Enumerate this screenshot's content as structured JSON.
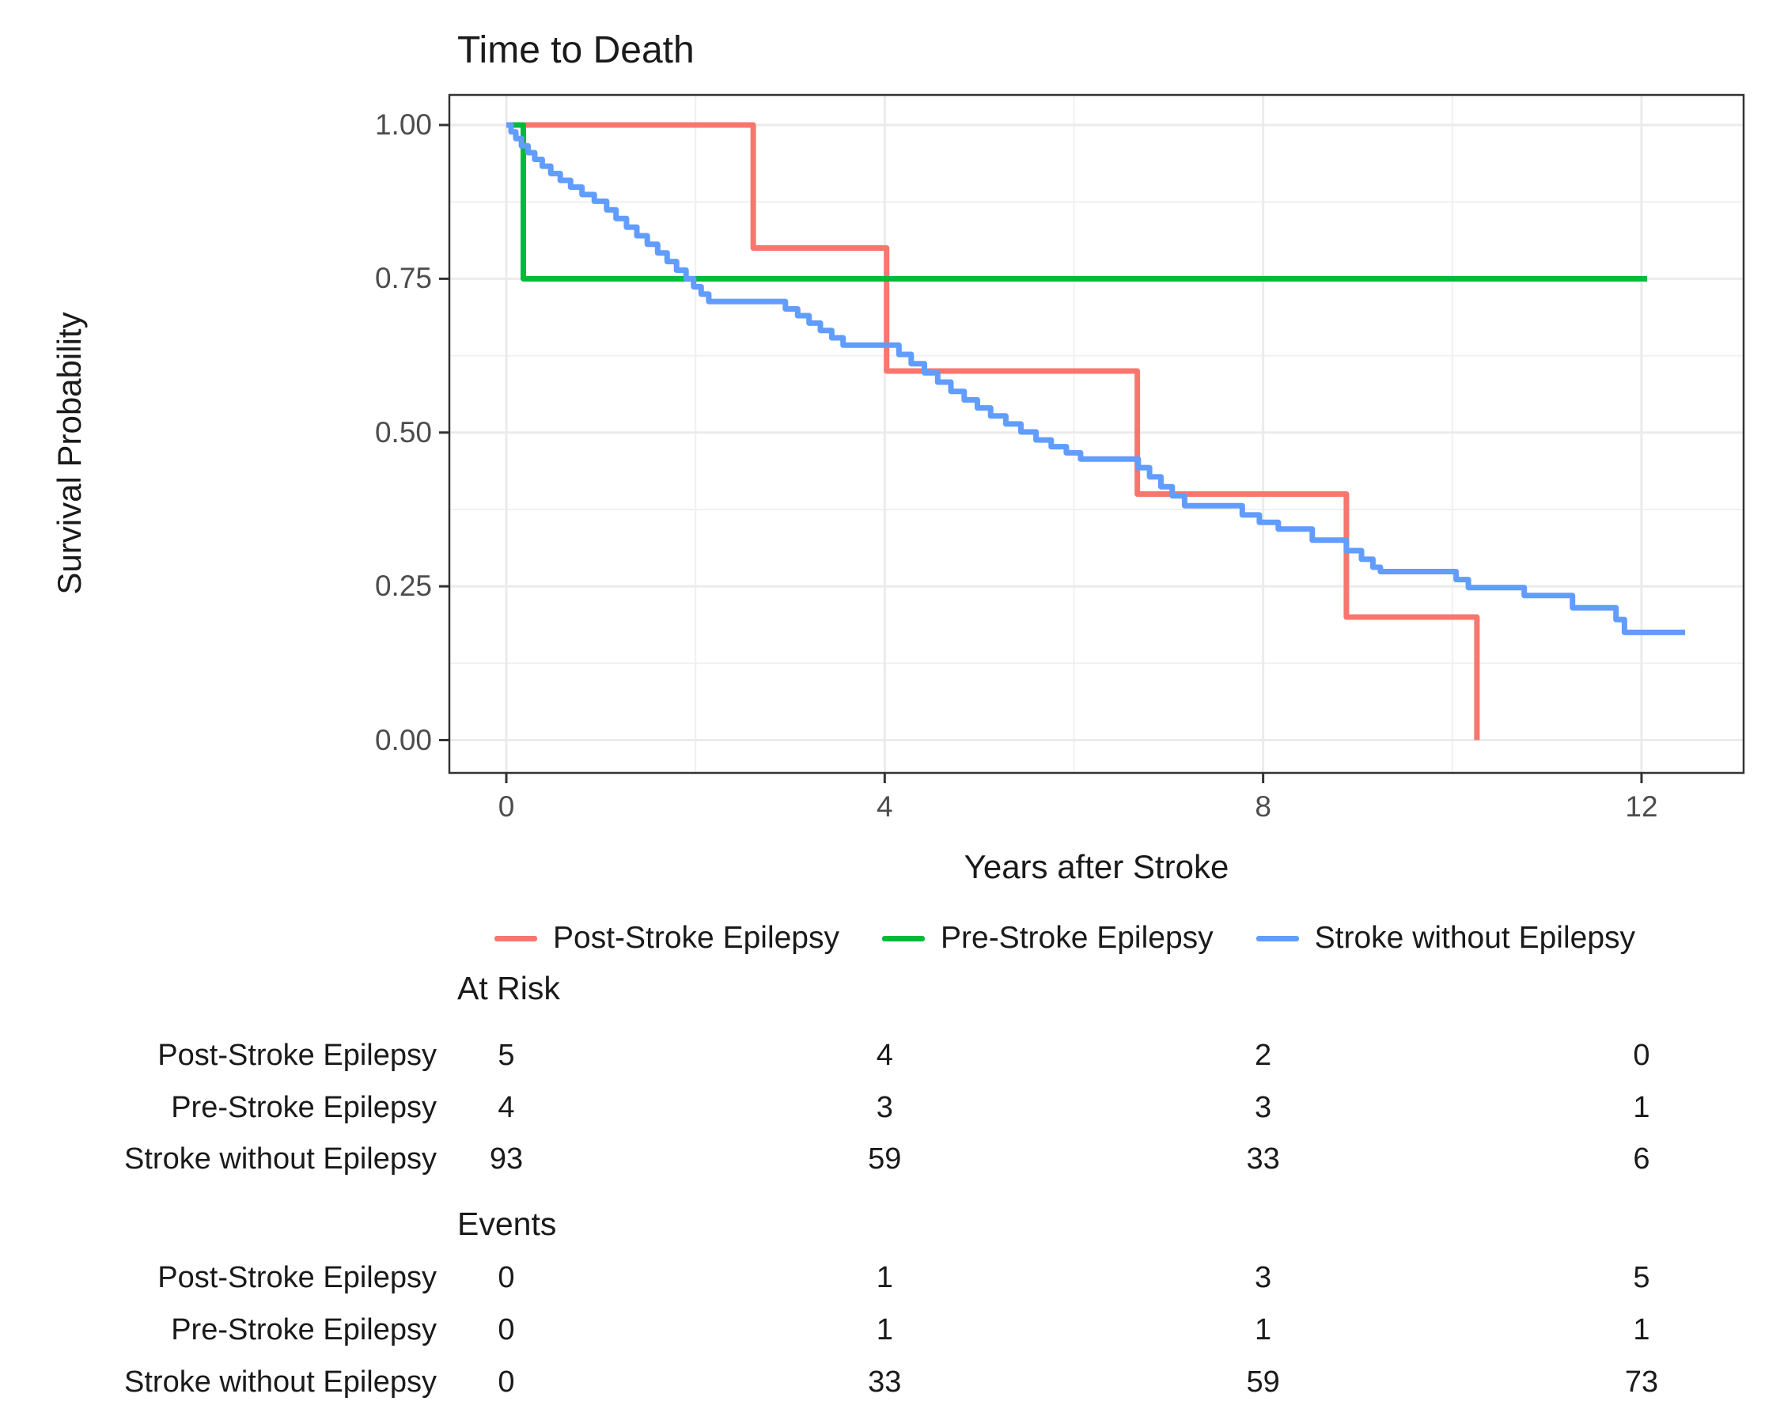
{
  "title": "Time to Death",
  "y_axis": {
    "label": "Survival Probability",
    "tick_labels": [
      "1.00",
      "0.75",
      "0.50",
      "0.25",
      "0.00"
    ],
    "tick_values": [
      1,
      0.75,
      0.5,
      0.25,
      0
    ],
    "minor_values": [
      0.875,
      0.625,
      0.375,
      0.125
    ]
  },
  "x_axis": {
    "label": "Years after Stroke",
    "tick_labels": [
      "0",
      "4",
      "8",
      "12"
    ],
    "tick_values": [
      0,
      4,
      8,
      12
    ],
    "minor_values": [
      2,
      6,
      10
    ]
  },
  "legend": {
    "items": [
      {
        "label": "Post-Stroke Epilepsy",
        "color": "#F8766D"
      },
      {
        "label": "Pre-Stroke Epilepsy",
        "color": "#00BA38"
      },
      {
        "label": "Stroke without Epilepsy",
        "color": "#619CFF"
      }
    ]
  },
  "colors": {
    "post_stroke": "#F8766D",
    "pre_stroke": "#00BA38",
    "stroke_without": "#619CFF",
    "grid_major": "#EBEBEB",
    "grid_minor": "#F0F0F0",
    "panel_border": "#333333",
    "tick_text": "#4d4d4d"
  },
  "chart_data": {
    "type": "line",
    "subtype": "kaplan-meier-step",
    "title": "Time to Death",
    "xlabel": "Years after Stroke",
    "ylabel": "Survival Probability",
    "xlim": [
      -0.6,
      13.1
    ],
    "ylim": [
      -0.053,
      1.049
    ],
    "xticks": [
      0,
      4,
      8,
      12
    ],
    "yticks": [
      0,
      0.25,
      0.5,
      0.75,
      1
    ],
    "grid": "on",
    "legend_position": "bottom",
    "series": [
      {
        "name": "Post-Stroke Epilepsy",
        "color": "#F8766D",
        "steps": [
          [
            0,
            1
          ],
          [
            2.61,
            0.8
          ],
          [
            4.02,
            0.6
          ],
          [
            6.67,
            0.4
          ],
          [
            8.88,
            0.2
          ],
          [
            10.26,
            0
          ]
        ],
        "end": 10.26
      },
      {
        "name": "Pre-Stroke Epilepsy",
        "color": "#00BA38",
        "steps": [
          [
            0,
            1
          ],
          [
            0.18,
            0.75
          ]
        ],
        "end": 12.06
      },
      {
        "name": "Stroke without Epilepsy",
        "color": "#619CFF",
        "steps": [
          [
            0,
            1
          ],
          [
            0.05,
            0.989
          ],
          [
            0.1,
            0.978
          ],
          [
            0.16,
            0.966
          ],
          [
            0.23,
            0.955
          ],
          [
            0.3,
            0.944
          ],
          [
            0.38,
            0.933
          ],
          [
            0.47,
            0.921
          ],
          [
            0.57,
            0.91
          ],
          [
            0.68,
            0.899
          ],
          [
            0.8,
            0.887
          ],
          [
            0.93,
            0.876
          ],
          [
            1.06,
            0.862
          ],
          [
            1.16,
            0.848
          ],
          [
            1.27,
            0.834
          ],
          [
            1.38,
            0.82
          ],
          [
            1.49,
            0.806
          ],
          [
            1.6,
            0.792
          ],
          [
            1.7,
            0.778
          ],
          [
            1.8,
            0.764
          ],
          [
            1.9,
            0.75
          ],
          [
            1.98,
            0.737
          ],
          [
            2.06,
            0.725
          ],
          [
            2.14,
            0.713
          ],
          [
            2.95,
            0.701
          ],
          [
            3.08,
            0.69
          ],
          [
            3.2,
            0.678
          ],
          [
            3.32,
            0.666
          ],
          [
            3.44,
            0.654
          ],
          [
            3.56,
            0.642
          ],
          [
            4.15,
            0.627
          ],
          [
            4.28,
            0.612
          ],
          [
            4.42,
            0.597
          ],
          [
            4.56,
            0.582
          ],
          [
            4.7,
            0.567
          ],
          [
            4.84,
            0.553
          ],
          [
            4.98,
            0.54
          ],
          [
            5.12,
            0.527
          ],
          [
            5.28,
            0.514
          ],
          [
            5.44,
            0.501
          ],
          [
            5.6,
            0.488
          ],
          [
            5.76,
            0.477
          ],
          [
            5.92,
            0.467
          ],
          [
            6.07,
            0.457
          ],
          [
            6.68,
            0.443
          ],
          [
            6.8,
            0.428
          ],
          [
            6.92,
            0.412
          ],
          [
            7.04,
            0.397
          ],
          [
            7.17,
            0.381
          ],
          [
            7.78,
            0.366
          ],
          [
            7.96,
            0.354
          ],
          [
            8.16,
            0.343
          ],
          [
            8.52,
            0.325
          ],
          [
            8.88,
            0.308
          ],
          [
            9.04,
            0.294
          ],
          [
            9.16,
            0.281
          ],
          [
            9.24,
            0.274
          ],
          [
            10.04,
            0.261
          ],
          [
            10.17,
            0.248
          ],
          [
            10.76,
            0.235
          ],
          [
            11.27,
            0.215
          ],
          [
            11.73,
            0.196
          ],
          [
            11.82,
            0.175
          ]
        ],
        "end": 12.46
      }
    ]
  },
  "risk_table": {
    "heading": "At Risk",
    "columns": [
      0,
      4,
      8,
      12
    ],
    "rows": [
      {
        "label": "Post-Stroke Epilepsy",
        "values": [
          "5",
          "4",
          "2",
          "0"
        ]
      },
      {
        "label": "Pre-Stroke Epilepsy",
        "values": [
          "4",
          "3",
          "3",
          "1"
        ]
      },
      {
        "label": "Stroke without Epilepsy",
        "values": [
          "93",
          "59",
          "33",
          "6"
        ]
      }
    ]
  },
  "events_table": {
    "heading": "Events",
    "columns": [
      0,
      4,
      8,
      12
    ],
    "rows": [
      {
        "label": "Post-Stroke Epilepsy",
        "values": [
          "0",
          "1",
          "3",
          "5"
        ]
      },
      {
        "label": "Pre-Stroke Epilepsy",
        "values": [
          "0",
          "1",
          "1",
          "1"
        ]
      },
      {
        "label": "Stroke without Epilepsy",
        "values": [
          "0",
          "33",
          "59",
          "73"
        ]
      }
    ]
  }
}
